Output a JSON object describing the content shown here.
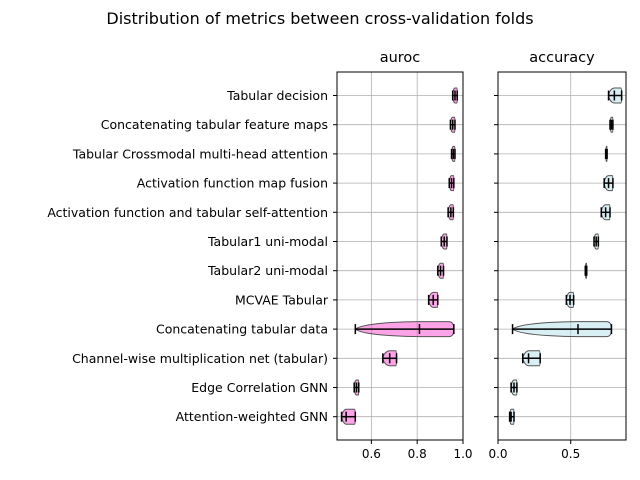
{
  "figure_title": "Distribution of metrics between cross-validation folds",
  "chart_data": [
    {
      "type": "violin",
      "title": "auroc",
      "xlim": [
        0.45,
        1.0
      ],
      "xticks": [
        0.6,
        0.8,
        1.0
      ],
      "xtick_labels": [
        "0.6",
        "0.8",
        "1.0"
      ],
      "grid": true,
      "violin_color": "#ff33cc",
      "categories": [
        "Tabular decision",
        "Concatenating tabular feature maps",
        "Tabular Crossmodal multi-head attention",
        "Activation function map fusion",
        "Activation function and tabular self-attention",
        "Tabular1 uni-modal",
        "Tabular2 uni-modal",
        "MCVAE Tabular",
        "Concatenating tabular data",
        "Channel-wise multiplication net (tabular)",
        "Edge Correlation GNN",
        "Attention-weighted GNN"
      ],
      "series": [
        {
          "min": 0.955,
          "median": 0.965,
          "max": 0.975
        },
        {
          "min": 0.945,
          "median": 0.955,
          "max": 0.965
        },
        {
          "min": 0.95,
          "median": 0.958,
          "max": 0.965
        },
        {
          "min": 0.94,
          "median": 0.95,
          "max": 0.96
        },
        {
          "min": 0.935,
          "median": 0.947,
          "max": 0.958
        },
        {
          "min": 0.905,
          "median": 0.918,
          "max": 0.93
        },
        {
          "min": 0.89,
          "median": 0.902,
          "max": 0.915
        },
        {
          "min": 0.85,
          "median": 0.87,
          "max": 0.89
        },
        {
          "min": 0.53,
          "median": 0.81,
          "max": 0.96
        },
        {
          "min": 0.65,
          "median": 0.68,
          "max": 0.71
        },
        {
          "min": 0.525,
          "median": 0.535,
          "max": 0.545
        },
        {
          "min": 0.47,
          "median": 0.49,
          "max": 0.53
        }
      ]
    },
    {
      "type": "violin",
      "title": "accuracy",
      "xlim": [
        0.0,
        0.88
      ],
      "xticks": [
        0.0,
        0.5
      ],
      "xtick_labels": [
        "0.0",
        "0.5"
      ],
      "grid": true,
      "violin_color": "#a9dbe6",
      "series": [
        {
          "min": 0.76,
          "median": 0.8,
          "max": 0.85
        },
        {
          "min": 0.77,
          "median": 0.78,
          "max": 0.79
        },
        {
          "min": 0.74,
          "median": 0.745,
          "max": 0.75
        },
        {
          "min": 0.73,
          "median": 0.76,
          "max": 0.79
        },
        {
          "min": 0.71,
          "median": 0.74,
          "max": 0.77
        },
        {
          "min": 0.66,
          "median": 0.675,
          "max": 0.69
        },
        {
          "min": 0.6,
          "median": 0.605,
          "max": 0.61
        },
        {
          "min": 0.47,
          "median": 0.495,
          "max": 0.52
        },
        {
          "min": 0.1,
          "median": 0.55,
          "max": 0.78
        },
        {
          "min": 0.17,
          "median": 0.21,
          "max": 0.29
        },
        {
          "min": 0.09,
          "median": 0.11,
          "max": 0.13
        },
        {
          "min": 0.08,
          "median": 0.09,
          "max": 0.11
        }
      ]
    }
  ]
}
